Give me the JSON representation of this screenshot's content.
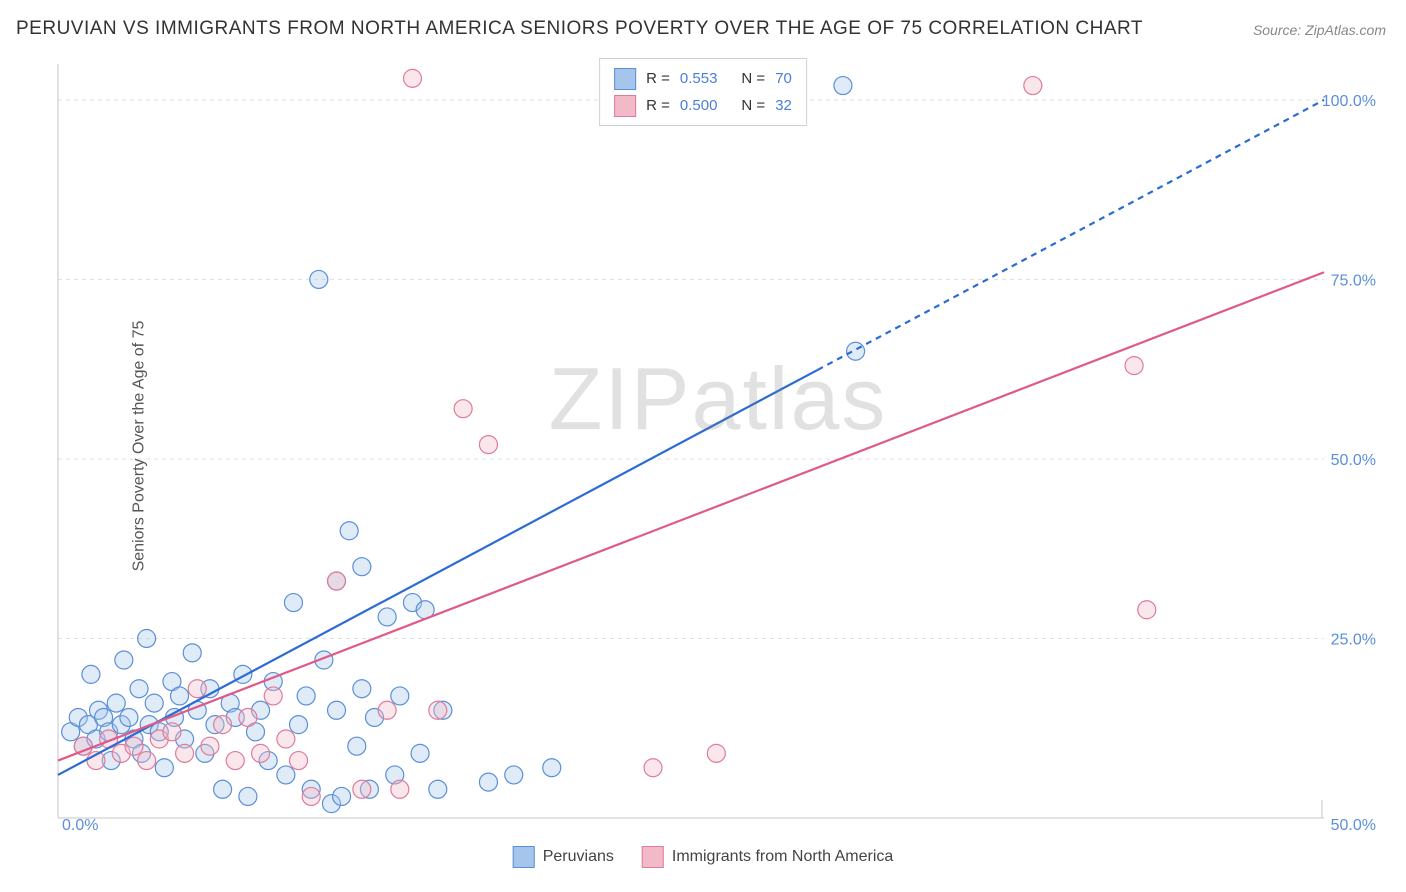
{
  "title": "PERUVIAN VS IMMIGRANTS FROM NORTH AMERICA SENIORS POVERTY OVER THE AGE OF 75 CORRELATION CHART",
  "source": "Source: ZipAtlas.com",
  "ylabel": "Seniors Poverty Over the Age of 75",
  "watermark_a": "ZIP",
  "watermark_b": "atlas",
  "chart": {
    "type": "scatter",
    "xlim": [
      0,
      50
    ],
    "ylim": [
      0,
      105
    ],
    "xtick_labels": [
      "0.0%",
      "50.0%"
    ],
    "xtick_positions": [
      0,
      50
    ],
    "ytick_labels": [
      "25.0%",
      "50.0%",
      "75.0%",
      "100.0%"
    ],
    "ytick_positions": [
      25,
      50,
      75,
      100
    ],
    "grid_color": "#e0e0e0",
    "grid_dash": "4,4",
    "axis_color": "#d8d8d8",
    "background_color": "#ffffff",
    "marker_radius": 9,
    "marker_fill_opacity": 0.35,
    "marker_stroke_width": 1.2,
    "series": [
      {
        "name": "Peruvians",
        "color_fill": "#a6c5ec",
        "color_stroke": "#5b8fd8",
        "trend_color": "#2b6cd4",
        "trend_width": 2.2,
        "trend_solid_to_x": 30,
        "trend_dash": "6,5",
        "trend": {
          "x1": 0,
          "y1": 6,
          "x2": 50,
          "y2": 100
        },
        "stats": {
          "R": "0.553",
          "N": "70"
        },
        "points": [
          [
            0.5,
            12
          ],
          [
            0.8,
            14
          ],
          [
            1.0,
            10
          ],
          [
            1.2,
            13
          ],
          [
            1.3,
            20
          ],
          [
            1.5,
            11
          ],
          [
            1.6,
            15
          ],
          [
            1.8,
            14
          ],
          [
            2.0,
            12
          ],
          [
            2.1,
            8
          ],
          [
            2.3,
            16
          ],
          [
            2.5,
            13
          ],
          [
            2.6,
            22
          ],
          [
            2.8,
            14
          ],
          [
            3.0,
            11
          ],
          [
            3.2,
            18
          ],
          [
            3.3,
            9
          ],
          [
            3.5,
            25
          ],
          [
            3.6,
            13
          ],
          [
            3.8,
            16
          ],
          [
            4.0,
            12
          ],
          [
            4.2,
            7
          ],
          [
            4.5,
            19
          ],
          [
            4.6,
            14
          ],
          [
            4.8,
            17
          ],
          [
            5.0,
            11
          ],
          [
            5.3,
            23
          ],
          [
            5.5,
            15
          ],
          [
            5.8,
            9
          ],
          [
            6.0,
            18
          ],
          [
            6.2,
            13
          ],
          [
            6.5,
            4
          ],
          [
            6.8,
            16
          ],
          [
            7.0,
            14
          ],
          [
            7.3,
            20
          ],
          [
            7.5,
            3
          ],
          [
            7.8,
            12
          ],
          [
            8.0,
            15
          ],
          [
            8.3,
            8
          ],
          [
            8.5,
            19
          ],
          [
            9.0,
            6
          ],
          [
            9.3,
            30
          ],
          [
            9.5,
            13
          ],
          [
            9.8,
            17
          ],
          [
            10.0,
            4
          ],
          [
            10.3,
            75
          ],
          [
            10.5,
            22
          ],
          [
            10.8,
            2
          ],
          [
            11.0,
            15
          ],
          [
            11.2,
            3
          ],
          [
            11.5,
            40
          ],
          [
            11.8,
            10
          ],
          [
            12.0,
            18
          ],
          [
            12.3,
            4
          ],
          [
            12.5,
            14
          ],
          [
            13.0,
            28
          ],
          [
            13.3,
            6
          ],
          [
            13.5,
            17
          ],
          [
            14.0,
            30
          ],
          [
            14.3,
            9
          ],
          [
            14.5,
            29
          ],
          [
            15.0,
            4
          ],
          [
            15.2,
            15
          ],
          [
            17.0,
            5
          ],
          [
            18.0,
            6
          ],
          [
            19.5,
            7
          ],
          [
            31.5,
            65
          ],
          [
            31.0,
            102
          ],
          [
            12.0,
            35
          ],
          [
            11.0,
            33
          ]
        ]
      },
      {
        "name": "Immigrants from North America",
        "color_fill": "#f2b9c8",
        "color_stroke": "#e07b9a",
        "trend_color": "#e05a89",
        "trend_width": 2.2,
        "trend_solid_to_x": 50,
        "trend_dash": "none",
        "trend": {
          "x1": 0,
          "y1": 8,
          "x2": 50,
          "y2": 76
        },
        "stats": {
          "R": "0.500",
          "N": "32"
        },
        "points": [
          [
            1.0,
            10
          ],
          [
            1.5,
            8
          ],
          [
            2.0,
            11
          ],
          [
            2.5,
            9
          ],
          [
            3.0,
            10
          ],
          [
            3.5,
            8
          ],
          [
            4.0,
            11
          ],
          [
            4.5,
            12
          ],
          [
            5.0,
            9
          ],
          [
            5.5,
            18
          ],
          [
            6.0,
            10
          ],
          [
            6.5,
            13
          ],
          [
            7.0,
            8
          ],
          [
            7.5,
            14
          ],
          [
            8.0,
            9
          ],
          [
            8.5,
            17
          ],
          [
            9.0,
            11
          ],
          [
            9.5,
            8
          ],
          [
            10.0,
            3
          ],
          [
            11.0,
            33
          ],
          [
            12.0,
            4
          ],
          [
            13.0,
            15
          ],
          [
            14.0,
            103
          ],
          [
            15.0,
            15
          ],
          [
            16.0,
            57
          ],
          [
            17.0,
            52
          ],
          [
            23.5,
            7
          ],
          [
            26.0,
            9
          ],
          [
            42.5,
            63
          ],
          [
            43.0,
            29
          ],
          [
            38.5,
            102
          ],
          [
            13.5,
            4
          ]
        ]
      }
    ]
  },
  "legend_top": {
    "r_prefix": "R =",
    "n_prefix": "N ="
  },
  "legend_bottom": {
    "items": [
      {
        "label": "Peruvians",
        "fill": "#a6c5ec",
        "stroke": "#5b8fd8"
      },
      {
        "label": "Immigrants from North America",
        "fill": "#f2b9c8",
        "stroke": "#e07b9a"
      }
    ]
  }
}
